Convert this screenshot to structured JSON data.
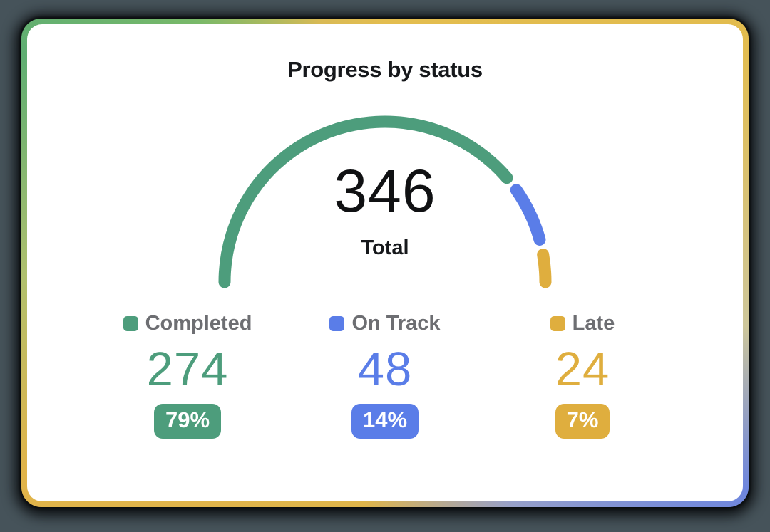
{
  "frame": {
    "page_background": "#46535a",
    "border_gradient_stops": [
      "#e3bd4f 0deg",
      "#e2bc4e 58deg",
      "#cdc69a 100deg",
      "#6e86de 122deg",
      "#97a0c9 152deg",
      "#dfb54a 185deg",
      "#e0b44a 240deg",
      "#afc06e 268deg",
      "#5fae72 300deg",
      "#79b969 322deg",
      "#d9ba55 345deg",
      "#e3bd4f 360deg"
    ]
  },
  "card": {
    "title": "Progress by status"
  },
  "gauge_center": {
    "value": "346",
    "label": "Total"
  },
  "stats": [
    {
      "label": "Completed",
      "value": "274",
      "percent_label": "79%",
      "color": "#4d9d7c"
    },
    {
      "label": "On Track",
      "value": "48",
      "percent_label": "14%",
      "color": "#5a7de8"
    },
    {
      "label": "Late",
      "value": "24",
      "percent_label": "7%",
      "color": "#dfae3e"
    }
  ],
  "chart_data": {
    "type": "gauge",
    "title": "Progress by status",
    "center_value": 346,
    "center_label": "Total",
    "categories": [
      "Completed",
      "On Track",
      "Late"
    ],
    "values": [
      274,
      48,
      24
    ],
    "percents": [
      79,
      14,
      7
    ],
    "colors": [
      "#4d9d7c",
      "#5a7de8",
      "#dfae3e"
    ],
    "arc": {
      "start_deg": 180,
      "end_deg": 0,
      "gap_deg": 5.5,
      "radius": 225,
      "stroke_width": 17
    },
    "legend_position": "bottom"
  }
}
